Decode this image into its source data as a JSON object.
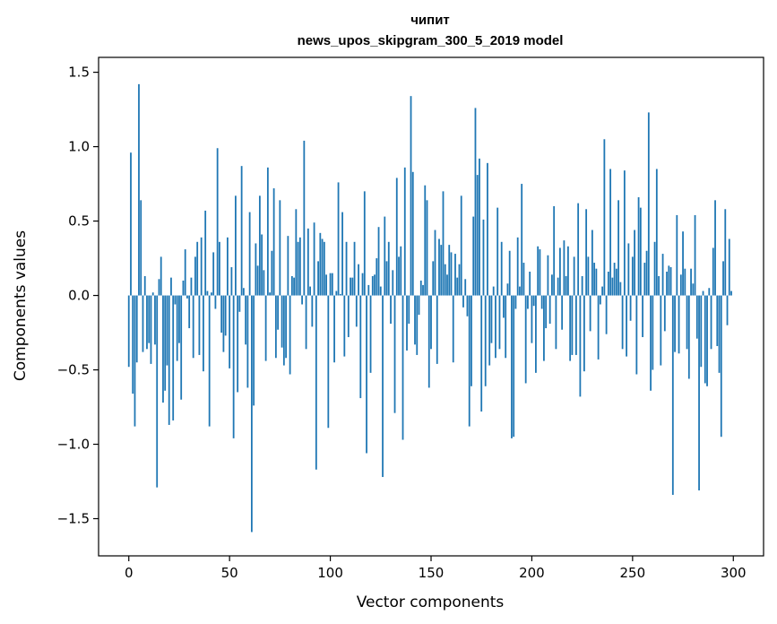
{
  "chart_data": {
    "type": "bar",
    "title": "чипит",
    "subtitle": "news_upos_skipgram_300_5_2019 model",
    "xlabel": "Vector components",
    "ylabel": "Components values",
    "xlim": [
      -15,
      315
    ],
    "ylim": [
      -1.75,
      1.6
    ],
    "xticks": [
      0,
      50,
      100,
      150,
      200,
      250,
      300
    ],
    "yticks": [
      -1.5,
      -1.0,
      -0.5,
      0.0,
      0.5,
      1.0,
      1.5
    ],
    "ytick_labels": [
      "−1.5",
      "−1.0",
      "−0.5",
      "0.0",
      "0.5",
      "1.0",
      "1.5"
    ],
    "xtick_labels": [
      "0",
      "50",
      "100",
      "150",
      "200",
      "250",
      "300"
    ],
    "bar_color": "#1f77b4",
    "values": [
      -0.48,
      0.96,
      -0.66,
      -0.88,
      -0.45,
      1.42,
      0.64,
      -0.38,
      0.13,
      -0.36,
      -0.32,
      -0.46,
      0.02,
      -0.33,
      -1.29,
      0.11,
      0.26,
      -0.72,
      -0.64,
      -0.47,
      -0.87,
      0.12,
      -0.84,
      -0.06,
      -0.44,
      -0.32,
      -0.7,
      0.1,
      0.31,
      -0.02,
      -0.22,
      0.12,
      -0.42,
      0.26,
      0.36,
      -0.4,
      0.39,
      -0.51,
      0.57,
      0.03,
      -0.88,
      0.02,
      0.29,
      -0.09,
      0.99,
      0.36,
      -0.25,
      -0.38,
      -0.27,
      0.39,
      -0.49,
      0.19,
      -0.96,
      0.67,
      -0.65,
      -0.11,
      0.87,
      0.05,
      -0.33,
      -0.62,
      0.56,
      -1.59,
      -0.74,
      0.35,
      0.2,
      0.67,
      0.41,
      0.17,
      -0.44,
      0.86,
      0.02,
      0.3,
      0.72,
      -0.42,
      -0.23,
      0.64,
      -0.35,
      -0.47,
      -0.42,
      0.4,
      -0.53,
      0.13,
      0.12,
      0.58,
      0.36,
      0.39,
      -0.06,
      1.04,
      -0.36,
      0.45,
      0.06,
      -0.21,
      0.49,
      -1.17,
      0.23,
      0.42,
      0.38,
      0.36,
      0.14,
      -0.89,
      0.15,
      0.15,
      -0.45,
      0.03,
      0.76,
      0.01,
      0.56,
      -0.41,
      0.36,
      -0.28,
      0.12,
      0.12,
      0.36,
      -0.21,
      0.21,
      -0.69,
      0.15,
      0.7,
      -1.06,
      0.07,
      -0.52,
      0.13,
      0.14,
      0.25,
      0.46,
      0.06,
      -1.22,
      0.53,
      0.23,
      0.36,
      -0.19,
      0.17,
      -0.79,
      0.79,
      0.26,
      0.33,
      -0.97,
      0.86,
      -0.37,
      -0.19,
      1.34,
      0.83,
      -0.33,
      -0.4,
      -0.13,
      0.1,
      0.07,
      0.74,
      0.64,
      -0.62,
      -0.36,
      0.23,
      0.44,
      -0.46,
      0.38,
      0.34,
      0.7,
      0.21,
      0.14,
      0.34,
      0.29,
      -0.45,
      0.28,
      0.12,
      0.21,
      0.67,
      -0.08,
      0.11,
      -0.14,
      -0.88,
      -0.61,
      0.53,
      1.26,
      0.81,
      0.92,
      -0.78,
      0.51,
      -0.61,
      0.89,
      -0.47,
      -0.32,
      0.06,
      -0.42,
      0.59,
      -0.36,
      0.36,
      -0.15,
      -0.42,
      0.08,
      0.3,
      -0.96,
      -0.95,
      -0.09,
      0.39,
      0.06,
      0.75,
      0.22,
      -0.59,
      -0.09,
      0.16,
      -0.32,
      -0.07,
      -0.52,
      0.33,
      0.31,
      -0.09,
      -0.44,
      -0.22,
      0.27,
      -0.19,
      0.14,
      0.6,
      -0.36,
      0.12,
      0.32,
      -0.23,
      0.37,
      0.13,
      0.33,
      -0.44,
      -0.4,
      0.26,
      -0.4,
      0.62,
      -0.68,
      0.13,
      -0.51,
      0.58,
      0.26,
      -0.24,
      0.44,
      0.22,
      0.18,
      -0.43,
      -0.06,
      0.06,
      1.05,
      -0.26,
      0.16,
      0.85,
      0.12,
      0.22,
      0.18,
      0.64,
      0.09,
      -0.36,
      0.84,
      -0.41,
      0.35,
      -0.17,
      0.26,
      0.44,
      -0.53,
      0.66,
      0.59,
      -0.28,
      0.22,
      0.3,
      1.23,
      -0.64,
      -0.5,
      0.36,
      0.85,
      0.13,
      -0.47,
      0.28,
      -0.24,
      0.16,
      0.2,
      0.19,
      -1.34,
      -0.38,
      0.54,
      -0.39,
      0.14,
      0.43,
      0.18,
      -0.36,
      -0.56,
      0.18,
      0.08,
      0.54,
      -0.29,
      -1.31,
      -0.48,
      0.03,
      -0.59,
      -0.61,
      0.05,
      -0.36,
      0.32,
      0.64,
      -0.34,
      -0.52,
      -0.95,
      0.23,
      0.58,
      -0.2,
      0.38,
      0.03
    ]
  }
}
